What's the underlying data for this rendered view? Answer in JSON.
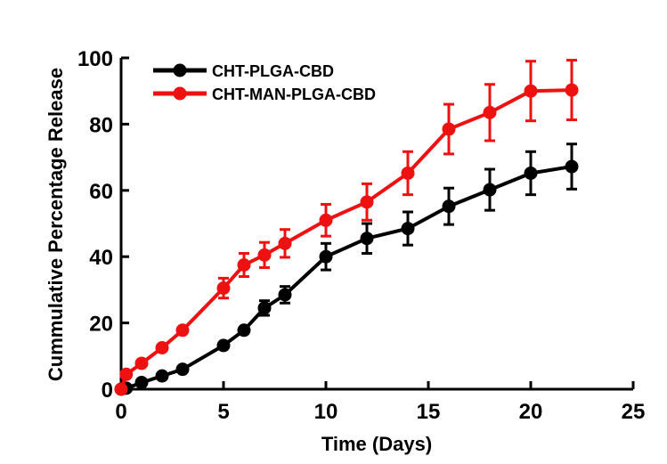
{
  "chart_data": {
    "type": "line",
    "title": "",
    "xlabel": "Time (Days)",
    "ylabel": "Cummulative Percentage Release",
    "xlim": [
      0,
      25
    ],
    "ylim": [
      0,
      100
    ],
    "xticks": [
      "0",
      "5",
      "10",
      "15",
      "20",
      "25"
    ],
    "yticks": [
      "0",
      "20",
      "40",
      "60",
      "80",
      "100"
    ],
    "grid": false,
    "legend_position": "top-left",
    "series": [
      {
        "name": "CHT-PLGA-CBD",
        "color": "#000000",
        "x": [
          0,
          0.25,
          1,
          2,
          3,
          5,
          6,
          7,
          8,
          10,
          12,
          14,
          16,
          18,
          20,
          22
        ],
        "y": [
          0,
          0.3,
          2.0,
          4.0,
          6.0,
          13.2,
          17.8,
          24.5,
          28.5,
          40.0,
          45.5,
          48.5,
          55.2,
          60.2,
          65.2,
          67.2
        ],
        "error": [
          0,
          0,
          0,
          0,
          0,
          0,
          0,
          2.2,
          2.5,
          4.0,
          4.5,
          5.0,
          5.5,
          6.2,
          6.5,
          6.8
        ]
      },
      {
        "name": "CHT-MAN-PLGA-CBD",
        "color": "#ee1111",
        "x": [
          0,
          0.25,
          1,
          2,
          3,
          5,
          6,
          7,
          8,
          10,
          12,
          14,
          16,
          18,
          20,
          22
        ],
        "y": [
          0,
          4.5,
          7.8,
          12.5,
          17.8,
          30.5,
          37.5,
          40.5,
          44.0,
          51.0,
          56.5,
          65.2,
          78.5,
          83.5,
          90.0,
          90.3
        ],
        "error": [
          0,
          0,
          0,
          0,
          0,
          3.0,
          3.5,
          3.8,
          4.2,
          4.8,
          5.5,
          6.5,
          7.5,
          8.5,
          9.0,
          9.0
        ]
      }
    ]
  }
}
